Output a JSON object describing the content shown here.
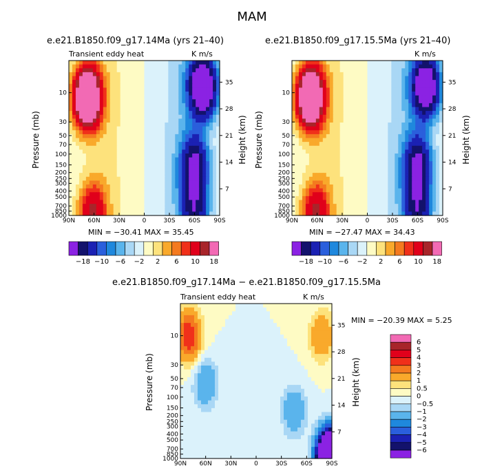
{
  "figure": {
    "season": "MAM",
    "diff_title": "e.e21.B1850.f09_g17.14Ma − e.e21.B1850.f09_g17.15.5Ma"
  },
  "colors": {
    "magenta": "#f26ab4",
    "darkred": "#a8252a",
    "red": "#e0001b",
    "redorange": "#f0301a",
    "orange": "#f47a1f",
    "amber": "#f9a92b",
    "yellow": "#fde27c",
    "paleyellow": "#fefbc4",
    "paleblue": "#dbf2fb",
    "lightblue": "#a9d7f5",
    "skyblue": "#5ab4ec",
    "blue": "#1f88dd",
    "royal": "#2a5fdc",
    "navy": "#1b21b3",
    "darknavy": "#13126c",
    "violet": "#8b22e3"
  },
  "chart_data": [
    {
      "type": "heatmap",
      "title": "e.e21.B1850.f09_g17.14Ma (yrs 21–40)",
      "left_label": "Transient eddy heat",
      "units": "K m/s",
      "xlabel": "",
      "ylabel": "Pressure (mb)",
      "right_ylabel": "Height (km)",
      "x_ticks": [
        "90N",
        "60N",
        "30N",
        "0",
        "30S",
        "60S",
        "90S"
      ],
      "y_ticks": [
        "10",
        "30",
        "50",
        "70",
        "100",
        "150",
        "200",
        "250",
        "300",
        "400",
        "500",
        "700",
        "850",
        "1000"
      ],
      "right_ticks": [
        "35",
        "28",
        "21",
        "14",
        "7"
      ],
      "xlim": [
        90,
        -90
      ],
      "ylim": [
        1000,
        3
      ],
      "scale": "log-pressure",
      "stats": "MIN = −30.41   MAX =  35.45",
      "colorbar_labels": [
        "−18",
        "−10",
        "−6",
        "−2",
        "2",
        "6",
        "10",
        "18"
      ],
      "features": [
        {
          "lat": 68,
          "p": 12,
          "value": 35
        },
        {
          "lat": 62,
          "p": 900,
          "value": 14
        },
        {
          "lat": -60,
          "p": 150,
          "value": -18
        },
        {
          "lat": -70,
          "p": 8,
          "value": -30
        },
        {
          "lat": -60,
          "p": 800,
          "value": -14
        }
      ]
    },
    {
      "type": "heatmap",
      "title": "e.e21.B1850.f09_g17.15.5Ma (yrs 21–40)",
      "left_label": "",
      "units": "K m/s",
      "xlabel": "",
      "ylabel": "Pressure (mb)",
      "right_ylabel": "Height (km)",
      "x_ticks": [
        "90N",
        "60N",
        "30N",
        "0",
        "30S",
        "60S",
        "90S"
      ],
      "y_ticks": [
        "10",
        "30",
        "50",
        "70",
        "100",
        "150",
        "200",
        "250",
        "300",
        "400",
        "500",
        "700",
        "850",
        "1000"
      ],
      "right_ticks": [
        "35",
        "28",
        "21",
        "14",
        "7"
      ],
      "xlim": [
        90,
        -90
      ],
      "ylim": [
        1000,
        3
      ],
      "scale": "log-pressure",
      "stats": "MIN = −27.47   MAX =  34.43",
      "colorbar_labels": [
        "−18",
        "−10",
        "−6",
        "−2",
        "2",
        "6",
        "10",
        "18"
      ],
      "features": [
        {
          "lat": 68,
          "p": 12,
          "value": 34
        },
        {
          "lat": 62,
          "p": 900,
          "value": 14
        },
        {
          "lat": -60,
          "p": 150,
          "value": -18
        },
        {
          "lat": -70,
          "p": 8,
          "value": -27
        },
        {
          "lat": -60,
          "p": 800,
          "value": -14
        }
      ]
    },
    {
      "type": "heatmap",
      "title": "",
      "left_label": "Transient eddy heat",
      "units": "K m/s",
      "xlabel": "",
      "ylabel": "Pressure (mb)",
      "right_ylabel": "Height (km)",
      "x_ticks": [
        "90N",
        "60N",
        "30N",
        "0",
        "30S",
        "60S",
        "90S"
      ],
      "y_ticks": [
        "10",
        "30",
        "50",
        "70",
        "100",
        "150",
        "200",
        "250",
        "300",
        "400",
        "500",
        "700",
        "850",
        "1000"
      ],
      "right_ticks": [
        "35",
        "28",
        "21",
        "14",
        "7"
      ],
      "xlim": [
        90,
        -90
      ],
      "ylim": [
        1000,
        3
      ],
      "scale": "log-pressure",
      "stats": "MIN = −20.39   MAX =   5.25",
      "colorbar_labels": [
        "6",
        "5",
        "4",
        "3",
        "2",
        "1",
        "0.5",
        "0",
        "−0.5",
        "−1",
        "−2",
        "−3",
        "−4",
        "−5",
        "−6"
      ],
      "features": [
        {
          "lat": 80,
          "p": 10,
          "value": 4
        },
        {
          "lat": 60,
          "p": 60,
          "value": -2
        },
        {
          "lat": -45,
          "p": 170,
          "value": -2
        },
        {
          "lat": -78,
          "p": 10,
          "value": 2
        },
        {
          "lat": -88,
          "p": 950,
          "value": -20
        }
      ]
    }
  ]
}
